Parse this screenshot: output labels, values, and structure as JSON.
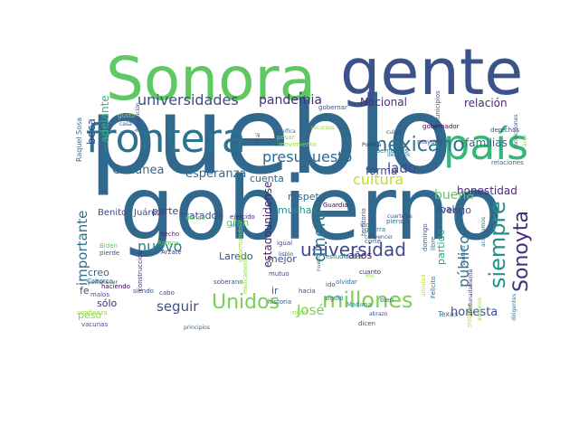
{
  "words": [
    {
      "text": "pueblo",
      "color": "#31688e"
    },
    {
      "text": "gobierno",
      "color": "#31688e"
    },
    {
      "text": "Sonora",
      "color": "#5ec962"
    },
    {
      "text": "gente",
      "color": "#3b528b"
    },
    {
      "text": "frontera",
      "color": "#2c728e"
    },
    {
      "text": "país",
      "color": "#35b779"
    },
    {
      "text": "mexicano",
      "color": "#2c728e"
    },
    {
      "text": "universidades",
      "color": "#3e4a89"
    },
    {
      "text": "Sonoyta",
      "color": "#472d7b"
    },
    {
      "text": "siempre",
      "color": "#21918c"
    },
    {
      "text": "Unidos",
      "color": "#7ad151"
    },
    {
      "text": "millones",
      "color": "#7ad151"
    },
    {
      "text": "universidad",
      "color": "#3e4a89"
    },
    {
      "text": "presupuesto",
      "color": "#31688e"
    },
    {
      "text": "público",
      "color": "#2c728e"
    },
    {
      "text": "dinero",
      "color": "#2a788e"
    },
    {
      "text": "cultura",
      "color": "#bddf26"
    },
    {
      "text": "beca",
      "color": "#3e4a89"
    },
    {
      "text": "Cananea",
      "color": "#31688e"
    },
    {
      "text": "esperanza",
      "color": "#31688e"
    },
    {
      "text": "pandemia",
      "color": "#472d7b"
    },
    {
      "text": "cuenta",
      "color": "#31688e"
    },
    {
      "text": "lado",
      "color": "#3e4a89"
    },
    {
      "text": "buena",
      "color": "#5ec962"
    },
    {
      "text": "nuevo",
      "color": "#26828e"
    },
    {
      "text": "importante",
      "color": "#2c728e"
    },
    {
      "text": "seguir",
      "color": "#3b528b"
    },
    {
      "text": "José",
      "color": "#7ad151"
    },
    {
      "text": "honesta",
      "color": "#3b528b"
    },
    {
      "text": "estadounidense",
      "color": "#481f70"
    },
    {
      "text": "adelante",
      "color": "#35b779"
    },
    {
      "text": "Nacional",
      "color": "#472d7b"
    },
    {
      "text": "relación",
      "color": "#482878"
    },
    {
      "text": "familias",
      "color": "#31688e"
    },
    {
      "text": "forma",
      "color": "#3e4a89"
    },
    {
      "text": "honestidad",
      "color": "#482878"
    },
    {
      "text": "partido",
      "color": "#22a884"
    },
    {
      "text": "años",
      "color": "#471164"
    },
    {
      "text": "vengo",
      "color": "#3b528b"
    },
    {
      "text": "malo",
      "color": "#3b528b"
    },
    {
      "text": "respeto",
      "color": "#31688e"
    },
    {
      "text": "tratados",
      "color": "#3b528b"
    },
    {
      "text": "parte",
      "color": "#414487"
    },
    {
      "text": "Benito",
      "color": "#3e4a89"
    },
    {
      "text": "Juárez",
      "color": "#3e4a89"
    },
    {
      "text": "muchas",
      "color": "#21918c"
    },
    {
      "text": "gran",
      "color": "#5ec962"
    },
    {
      "text": "Laredo",
      "color": "#3b528b"
    },
    {
      "text": "mejor",
      "color": "#3e4a89"
    },
    {
      "text": "creo",
      "color": "#31688e"
    },
    {
      "text": "sólo",
      "color": "#472d7b"
    },
    {
      "text": "peso",
      "color": "#8fd744"
    },
    {
      "text": "fe",
      "color": "#3b528b"
    },
    {
      "text": "ir",
      "color": "#31688e"
    },
    {
      "text": "Raquel Sosa",
      "color": "#2c728e"
    },
    {
      "text": "Texas",
      "color": "#2c728e"
    },
    {
      "text": "pertenecer",
      "color": "#3e4a89"
    },
    {
      "text": "haciendo",
      "color": "#440154"
    },
    {
      "text": "malos",
      "color": "#3b528b"
    },
    {
      "text": "vacunas",
      "color": "#3b528b"
    },
    {
      "text": "Caborca",
      "color": "#2c728e"
    },
    {
      "text": "confianza",
      "color": "#8fd744"
    },
    {
      "text": "Biden",
      "color": "#5ec962"
    },
    {
      "text": "pierde",
      "color": "#3b528b"
    },
    {
      "text": "hecho",
      "color": "#482878"
    },
    {
      "text": "Ramos",
      "color": "#5ec962"
    },
    {
      "text": "Arzate",
      "color": "#3e4a89"
    },
    {
      "text": "siendo",
      "color": "#3b528b"
    },
    {
      "text": "cabo",
      "color": "#3e4a89"
    },
    {
      "text": "construcción",
      "color": "#472d7b"
    },
    {
      "text": "dónde",
      "color": "#5ec962"
    },
    {
      "text": "ejercido",
      "color": "#481f70"
    },
    {
      "text": "informando",
      "color": "#8fd744"
    },
    {
      "text": "Guardia",
      "color": "#440154"
    },
    {
      "text": "igual",
      "color": "#3b528b"
    },
    {
      "text": "listón",
      "color": "#3e4a89"
    },
    {
      "text": "estudiantes",
      "color": "#2c728e"
    },
    {
      "text": "soberano",
      "color": "#3b528b"
    },
    {
      "text": "historia",
      "color": "#3b528b"
    },
    {
      "text": "nivel",
      "color": "#8fd744"
    },
    {
      "text": "hacia",
      "color": "#3b528b"
    },
    {
      "text": "mutuo",
      "color": "#3e4a89"
    },
    {
      "text": "olvidar",
      "color": "#31688e"
    },
    {
      "text": "dicen",
      "color": "#3b528b"
    },
    {
      "text": "cuanto",
      "color": "#481f70"
    },
    {
      "text": "bien",
      "color": "#31688e"
    },
    {
      "text": "Mañana",
      "color": "#21918c"
    },
    {
      "text": "piensas",
      "color": "#31688e"
    },
    {
      "text": "vida",
      "color": "#31688e"
    },
    {
      "text": "guerra",
      "color": "#2c728e"
    },
    {
      "text": "corte",
      "color": "#3b528b"
    },
    {
      "text": "convencer",
      "color": "#3b528b"
    },
    {
      "text": "cuarteles",
      "color": "#3b528b"
    },
    {
      "text": "siguió",
      "color": "#2c728e"
    },
    {
      "text": "territorio",
      "color": "#3b528b"
    },
    {
      "text": "mayoría",
      "color": "#3b528b"
    },
    {
      "text": "derechos",
      "color": "#3e4a89"
    },
    {
      "text": "relaciones",
      "color": "#2c728e"
    },
    {
      "text": "gobernantes",
      "color": "#2c728e"
    },
    {
      "text": "Política",
      "color": "#481f70"
    },
    {
      "text": "culpa",
      "color": "#3e4a89"
    },
    {
      "text": "gobernador",
      "color": "#440154"
    },
    {
      "text": "servir",
      "color": "#3b528b"
    },
    {
      "text": "pesar",
      "color": "#8fd744"
    },
    {
      "text": "movimiento",
      "color": "#8fd744"
    },
    {
      "text": "significa",
      "color": "#2c728e"
    },
    {
      "text": "final",
      "color": "#3b528b"
    },
    {
      "text": "gusto",
      "color": "#8fd744"
    },
    {
      "text": "Revolución",
      "color": "#3e4a89"
    },
    {
      "text": "sistema",
      "color": "#bddf26"
    },
    {
      "text": "dirigentes",
      "color": "#2c728e"
    },
    {
      "text": "principios",
      "color": "#31688e"
    },
    {
      "text": "domingo",
      "color": "#3b528b"
    },
    {
      "text": "Felicito",
      "color": "#2c728e"
    },
    {
      "text": "libre",
      "color": "#2c728e"
    },
    {
      "text": "municipios",
      "color": "#3b528b"
    },
    {
      "text": "convicciones",
      "color": "#3b528b"
    },
    {
      "text": "acto",
      "color": "#8fd744"
    },
    {
      "text": "amistad",
      "color": "#bddf26"
    },
    {
      "text": "sentido",
      "color": "#2c728e"
    },
    {
      "text": "afortunadamente",
      "color": "#472d7b"
    },
    {
      "text": "asesinos",
      "color": "#8fd744"
    },
    {
      "text": "acordamos",
      "color": "#2c728e"
    },
    {
      "text": "gobernar",
      "color": "#3b528b"
    },
    {
      "text": "recursos",
      "color": "#8fd744"
    },
    {
      "text": "medicamentos",
      "color": "#8fd744"
    },
    {
      "text": "decimos",
      "color": "#2c728e"
    },
    {
      "text": "abrazo",
      "color": "#3b528b"
    },
    {
      "text": "obra",
      "color": "#2c728e"
    },
    {
      "text": "Rio",
      "color": "#8fd744"
    },
    {
      "text": "casa",
      "color": "#3b528b"
    },
    {
      "text": "nuevo",
      "color": "#2c728e"
    },
    {
      "text": "ido",
      "color": "#3b528b"
    }
  ]
}
